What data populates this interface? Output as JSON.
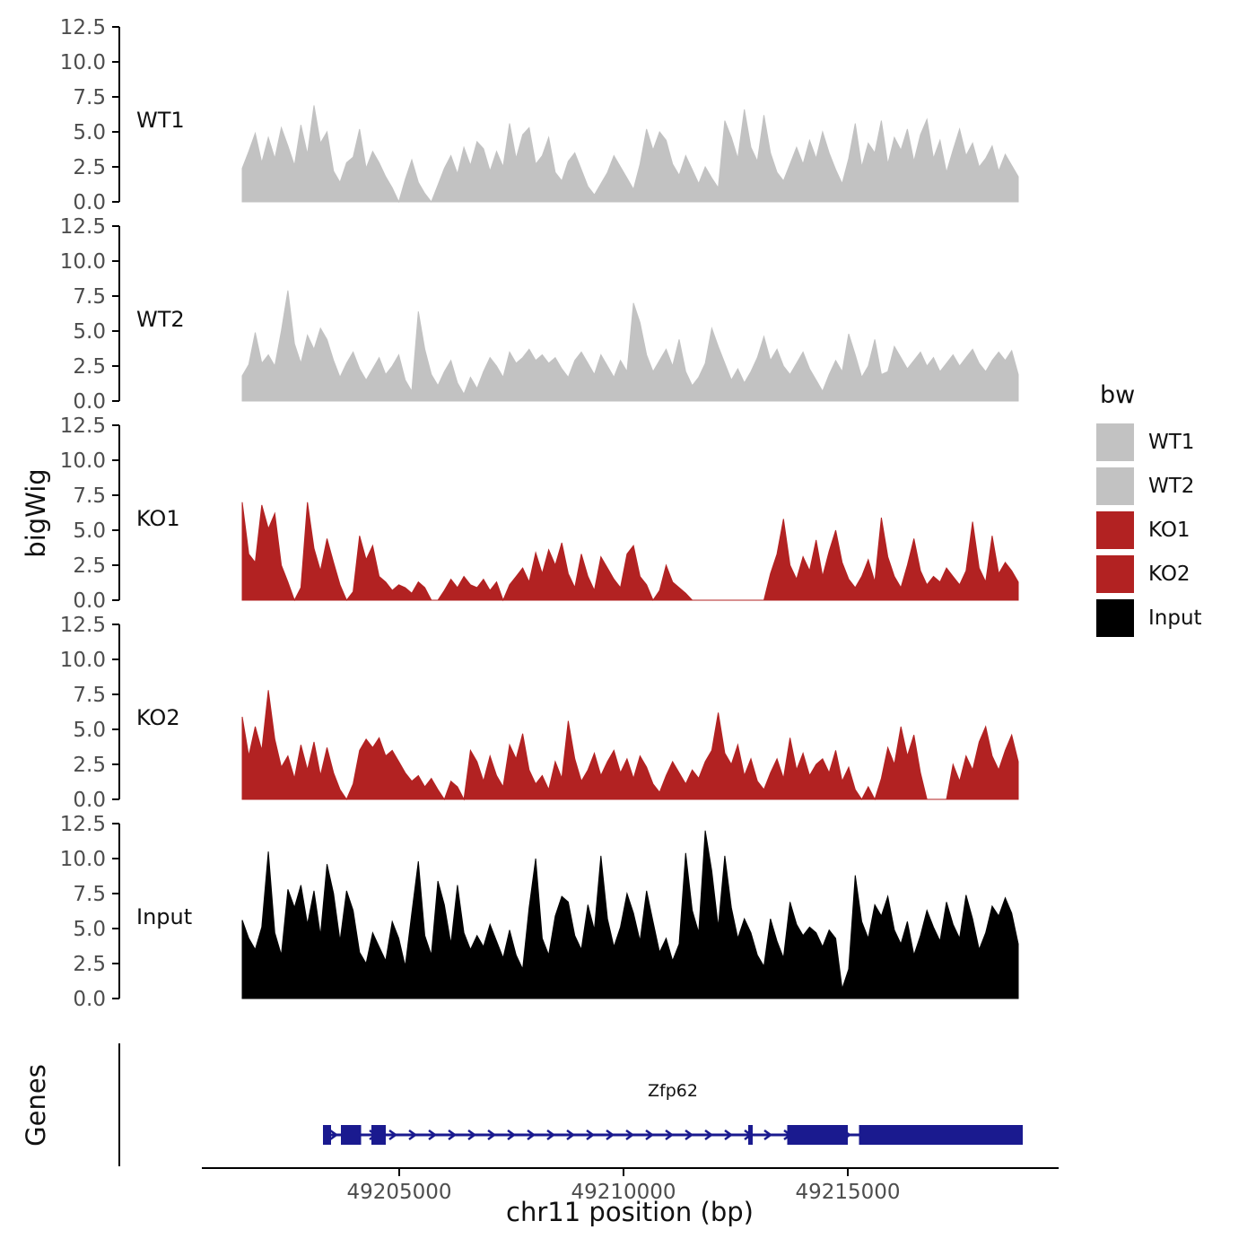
{
  "chart_data": {
    "type": "area",
    "title": "",
    "xlabel": "chr11 position (bp)",
    "ylabel": "bigWig",
    "ylim": [
      0,
      12.5
    ],
    "y_ticks": [
      0,
      2.5,
      5,
      7.5,
      10,
      12.5
    ],
    "x_ticks": [
      49205000,
      49210000,
      49215000
    ],
    "x_tick_labels": [
      "49205000",
      "49210000",
      "49215000"
    ],
    "xlim": [
      49198760,
      49219700
    ],
    "x_range": [
      49201500,
      49218800
    ],
    "grid": false,
    "legend_position": "right",
    "tracks": [
      {
        "name": "WT1",
        "color": "#C2C2C2",
        "values": [
          2.4,
          3.6,
          4.9,
          2.8,
          4.6,
          3.1,
          5.3,
          4.0,
          2.6,
          5.5,
          3.4,
          6.9,
          4.2,
          5.0,
          2.2,
          1.4,
          2.8,
          3.2,
          5.2,
          2.4,
          3.6,
          2.8,
          1.8,
          1.0,
          0.0,
          1.6,
          3.0,
          1.4,
          0.6,
          0.0,
          1.2,
          2.4,
          3.3,
          2.0,
          3.9,
          2.6,
          4.3,
          3.8,
          2.2,
          3.6,
          2.5,
          5.6,
          3.1,
          4.8,
          5.3,
          2.7,
          3.3,
          4.6,
          2.1,
          1.5,
          2.9,
          3.5,
          2.3,
          1.1,
          0.5,
          1.3,
          2.1,
          3.3,
          2.5,
          1.7,
          0.9,
          2.7,
          5.2,
          3.7,
          5.0,
          4.4,
          2.7,
          1.9,
          3.3,
          2.3,
          1.3,
          2.5,
          1.7,
          1.0,
          5.8,
          4.6,
          3.1,
          6.6,
          3.9,
          2.9,
          6.2,
          3.5,
          2.1,
          1.5,
          2.7,
          3.9,
          2.7,
          4.4,
          3.1,
          5.0,
          3.5,
          2.3,
          1.3,
          3.1,
          5.6,
          2.5,
          4.2,
          3.5,
          5.8,
          2.7,
          4.6,
          3.7,
          5.2,
          2.9,
          4.8,
          5.9,
          3.1,
          4.4,
          2.1,
          3.7,
          5.2,
          3.3,
          4.2,
          2.5,
          3.1,
          4.0,
          2.2,
          3.4,
          2.6,
          1.8
        ]
      },
      {
        "name": "WT2",
        "color": "#C2C2C2",
        "values": [
          1.8,
          2.6,
          4.9,
          2.7,
          3.3,
          2.5,
          5.0,
          7.9,
          4.1,
          2.7,
          4.7,
          3.7,
          5.2,
          4.4,
          2.9,
          1.7,
          2.7,
          3.5,
          2.3,
          1.5,
          2.3,
          3.1,
          1.9,
          2.5,
          3.3,
          1.5,
          0.7,
          6.4,
          3.7,
          1.9,
          1.1,
          2.1,
          2.9,
          1.3,
          0.5,
          1.7,
          0.9,
          2.1,
          3.1,
          2.5,
          1.7,
          3.5,
          2.7,
          3.1,
          3.7,
          2.9,
          3.3,
          2.7,
          3.1,
          2.3,
          1.7,
          2.9,
          3.5,
          2.7,
          1.9,
          3.3,
          2.5,
          1.7,
          2.9,
          2.1,
          7.0,
          5.6,
          3.3,
          2.1,
          2.9,
          3.7,
          2.5,
          4.4,
          2.1,
          1.1,
          1.7,
          2.7,
          5.2,
          3.9,
          2.7,
          1.5,
          2.3,
          1.3,
          2.1,
          3.1,
          4.6,
          2.9,
          3.7,
          2.5,
          1.9,
          2.7,
          3.5,
          2.3,
          1.5,
          0.7,
          1.9,
          2.9,
          2.1,
          4.8,
          3.3,
          1.7,
          2.5,
          4.4,
          1.9,
          2.1,
          3.9,
          3.1,
          2.3,
          2.9,
          3.5,
          2.5,
          3.1,
          2.1,
          2.7,
          3.3,
          2.5,
          3.1,
          3.7,
          2.7,
          2.1,
          2.9,
          3.5,
          2.9,
          3.6,
          1.9
        ]
      },
      {
        "name": "KO1",
        "color": "#B22222",
        "values": [
          7.0,
          3.3,
          2.7,
          6.8,
          5.1,
          6.2,
          2.5,
          1.3,
          0.0,
          0.9,
          7.0,
          3.7,
          2.1,
          4.4,
          2.7,
          1.1,
          0.0,
          0.6,
          4.6,
          2.9,
          3.9,
          1.7,
          1.3,
          0.7,
          1.1,
          0.9,
          0.5,
          1.3,
          0.9,
          0.0,
          0.0,
          0.7,
          1.5,
          0.9,
          1.7,
          1.1,
          0.9,
          1.5,
          0.7,
          1.3,
          0.0,
          1.1,
          1.7,
          2.3,
          1.3,
          3.4,
          1.9,
          3.6,
          2.5,
          4.1,
          1.9,
          0.9,
          3.3,
          1.7,
          0.7,
          3.1,
          2.3,
          1.5,
          0.9,
          3.3,
          3.9,
          1.7,
          1.1,
          0.0,
          0.7,
          2.5,
          1.3,
          0.9,
          0.5,
          0.0,
          0.0,
          0.0,
          0.0,
          0.0,
          0.0,
          0.0,
          0.0,
          0.0,
          0.0,
          0.0,
          0.0,
          1.9,
          3.3,
          5.8,
          2.5,
          1.5,
          3.1,
          2.1,
          4.3,
          1.7,
          3.5,
          5.0,
          2.7,
          1.5,
          0.9,
          1.7,
          2.9,
          1.3,
          5.9,
          3.1,
          1.7,
          0.9,
          2.5,
          4.4,
          2.1,
          1.1,
          1.7,
          1.3,
          2.3,
          1.7,
          1.1,
          2.1,
          5.6,
          2.3,
          1.3,
          4.6,
          1.9,
          2.7,
          2.1,
          1.3
        ]
      },
      {
        "name": "KO2",
        "color": "#B22222",
        "values": [
          5.9,
          3.1,
          5.2,
          3.5,
          7.8,
          4.3,
          2.3,
          3.1,
          1.5,
          3.9,
          2.1,
          4.1,
          1.7,
          3.7,
          1.9,
          0.7,
          0.0,
          1.1,
          3.5,
          4.3,
          3.7,
          4.4,
          3.1,
          3.5,
          2.7,
          1.9,
          1.3,
          1.7,
          0.9,
          1.5,
          0.7,
          0.0,
          1.3,
          0.9,
          0.0,
          3.5,
          2.7,
          1.3,
          3.1,
          1.7,
          0.9,
          3.9,
          2.9,
          4.7,
          2.1,
          1.1,
          1.7,
          0.7,
          2.7,
          1.5,
          5.6,
          2.9,
          1.3,
          2.1,
          3.3,
          1.7,
          2.7,
          3.5,
          1.9,
          2.9,
          1.5,
          3.1,
          2.3,
          1.1,
          0.5,
          1.7,
          2.7,
          1.9,
          1.1,
          2.1,
          1.5,
          2.7,
          3.5,
          6.2,
          3.3,
          2.5,
          3.9,
          1.7,
          2.9,
          1.3,
          0.7,
          1.9,
          2.9,
          1.5,
          4.4,
          2.1,
          3.3,
          1.7,
          2.5,
          2.9,
          1.9,
          3.5,
          1.3,
          2.3,
          0.7,
          0.0,
          0.9,
          0.0,
          1.5,
          3.7,
          2.5,
          5.2,
          3.1,
          4.6,
          1.9,
          0.0,
          0.0,
          0.0,
          0.0,
          2.5,
          1.3,
          3.1,
          2.1,
          4.1,
          5.2,
          3.1,
          2.1,
          3.5,
          4.6,
          2.7
        ]
      },
      {
        "name": "Input",
        "color": "#000000",
        "values": [
          5.6,
          4.3,
          3.5,
          5.1,
          10.5,
          4.7,
          3.1,
          7.8,
          6.5,
          8.1,
          5.3,
          7.7,
          4.5,
          9.6,
          7.5,
          4.1,
          7.7,
          6.3,
          3.3,
          2.5,
          4.7,
          3.7,
          2.7,
          5.5,
          4.3,
          2.3,
          6.1,
          9.8,
          4.5,
          3.1,
          8.4,
          6.7,
          3.9,
          8.1,
          4.7,
          3.5,
          4.5,
          3.7,
          5.3,
          4.1,
          2.9,
          4.9,
          3.1,
          2.1,
          6.5,
          10.0,
          4.3,
          3.1,
          5.9,
          7.3,
          6.9,
          4.5,
          3.5,
          6.7,
          4.9,
          10.2,
          5.7,
          3.7,
          5.1,
          7.5,
          6.1,
          4.1,
          7.7,
          5.5,
          3.3,
          4.3,
          2.7,
          3.9,
          10.4,
          6.3,
          4.7,
          12.0,
          9.1,
          5.1,
          10.2,
          6.5,
          4.3,
          5.7,
          4.7,
          3.1,
          2.3,
          5.7,
          4.1,
          2.9,
          6.9,
          5.3,
          4.5,
          5.1,
          4.7,
          3.7,
          4.9,
          4.3,
          0.7,
          2.1,
          8.8,
          5.5,
          4.3,
          6.7,
          5.9,
          7.3,
          4.9,
          3.9,
          5.5,
          3.1,
          4.5,
          6.3,
          5.1,
          4.1,
          6.9,
          5.3,
          4.3,
          7.4,
          5.7,
          3.5,
          4.7,
          6.6,
          5.9,
          7.2,
          6.1,
          3.9
        ]
      }
    ],
    "gene_track": {
      "label": "Genes",
      "gene": {
        "name": "Zfp62",
        "color": "#1A1A8F",
        "strand": "+",
        "start": 49203300,
        "end": 49218900,
        "exons": [
          {
            "start": 49203300,
            "end": 49203480
          },
          {
            "start": 49203700,
            "end": 49204150
          },
          {
            "start": 49204380,
            "end": 49204700
          },
          {
            "start": 49212780,
            "end": 49212880
          },
          {
            "start": 49213650,
            "end": 49215000
          },
          {
            "start": 49215250,
            "end": 49218900
          }
        ]
      }
    },
    "legend": {
      "title": "bw",
      "entries": [
        {
          "label": "WT1",
          "color": "#C2C2C2"
        },
        {
          "label": "WT2",
          "color": "#C2C2C2"
        },
        {
          "label": "KO1",
          "color": "#B22222"
        },
        {
          "label": "KO2",
          "color": "#B22222"
        },
        {
          "label": "Input",
          "color": "#000000"
        }
      ]
    }
  }
}
